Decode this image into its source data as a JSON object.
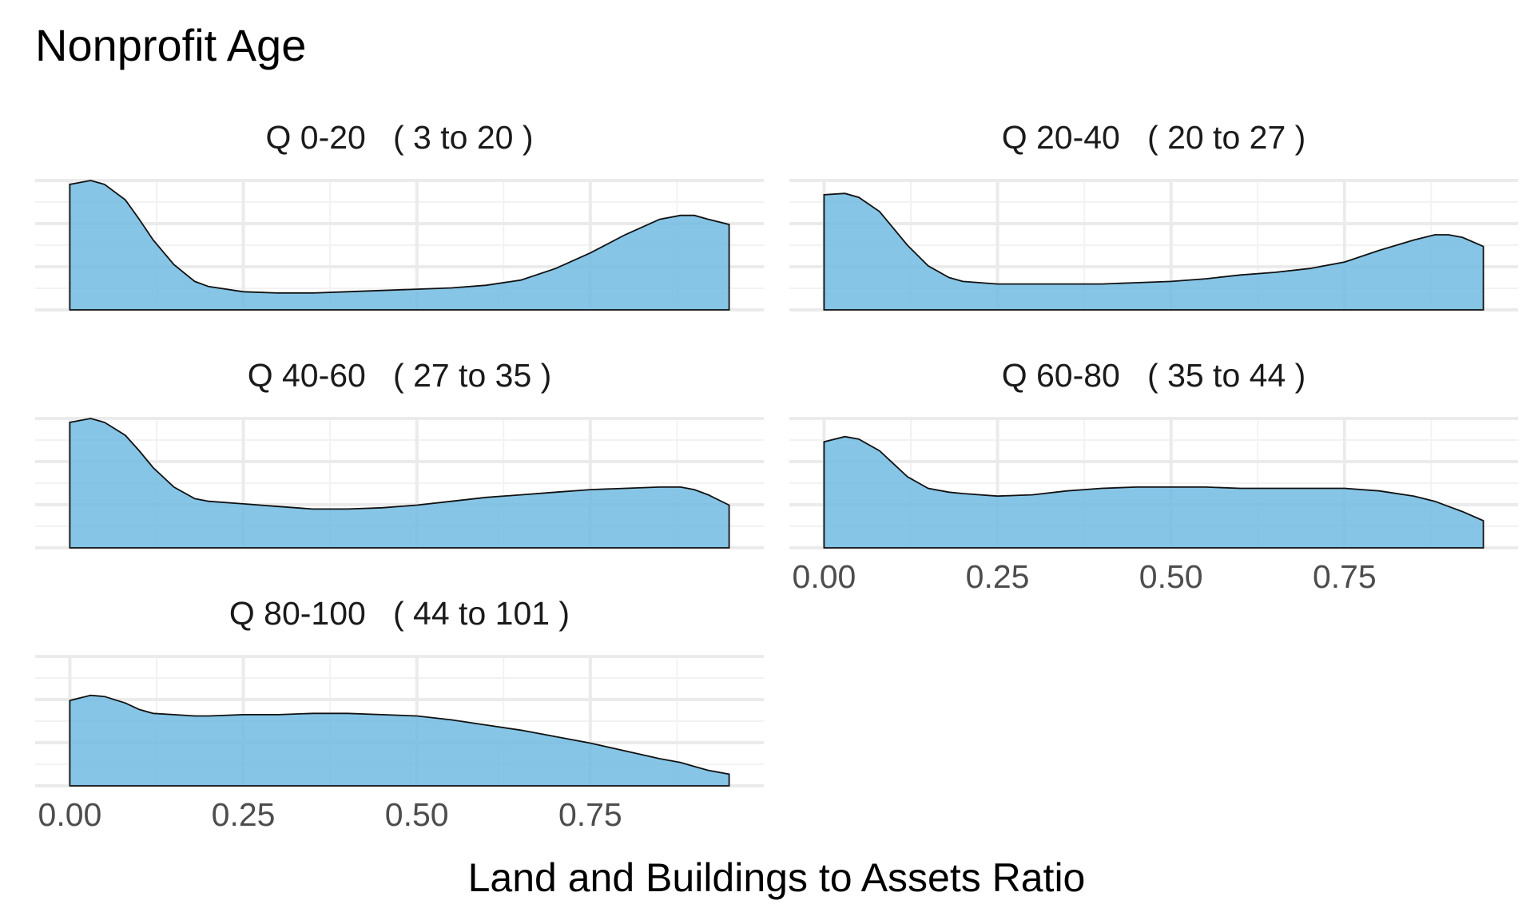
{
  "chart_data": {
    "type": "area",
    "title": "Nonprofit Age",
    "xlabel": "Land and Buildings to Assets Ratio",
    "ylabel": "",
    "xlim": [
      -0.05,
      1.0
    ],
    "ylim": [
      0,
      1
    ],
    "grid": true,
    "x_ticks": [
      {
        "value": 0.0,
        "label": "0.00"
      },
      {
        "value": 0.25,
        "label": "0.25"
      },
      {
        "value": 0.5,
        "label": "0.50"
      },
      {
        "value": 0.75,
        "label": "0.75"
      }
    ],
    "x": [
      0.0,
      0.03,
      0.05,
      0.08,
      0.1,
      0.12,
      0.15,
      0.18,
      0.2,
      0.25,
      0.3,
      0.35,
      0.4,
      0.45,
      0.5,
      0.55,
      0.6,
      0.65,
      0.7,
      0.75,
      0.8,
      0.85,
      0.88,
      0.9,
      0.92,
      0.95
    ],
    "series": [
      {
        "name": "Q 0-20   ( 3 to 20 )",
        "values": [
          0.97,
          1.0,
          0.97,
          0.85,
          0.7,
          0.54,
          0.35,
          0.22,
          0.18,
          0.14,
          0.13,
          0.13,
          0.14,
          0.15,
          0.16,
          0.17,
          0.19,
          0.23,
          0.32,
          0.44,
          0.58,
          0.7,
          0.73,
          0.73,
          0.7,
          0.66
        ]
      },
      {
        "name": "Q 20-40   ( 20 to 27 )",
        "values": [
          0.89,
          0.9,
          0.87,
          0.76,
          0.63,
          0.5,
          0.34,
          0.25,
          0.22,
          0.2,
          0.2,
          0.2,
          0.2,
          0.21,
          0.22,
          0.24,
          0.27,
          0.29,
          0.32,
          0.37,
          0.46,
          0.54,
          0.58,
          0.58,
          0.56,
          0.49
        ]
      },
      {
        "name": "Q 40-60   ( 27 to 35 )",
        "values": [
          0.97,
          1.0,
          0.97,
          0.87,
          0.75,
          0.62,
          0.47,
          0.38,
          0.36,
          0.34,
          0.32,
          0.3,
          0.3,
          0.31,
          0.33,
          0.36,
          0.39,
          0.41,
          0.43,
          0.45,
          0.46,
          0.47,
          0.47,
          0.45,
          0.41,
          0.33
        ]
      },
      {
        "name": "Q 60-80   ( 35 to 44 )",
        "values": [
          0.82,
          0.86,
          0.84,
          0.75,
          0.65,
          0.55,
          0.46,
          0.43,
          0.42,
          0.4,
          0.41,
          0.44,
          0.46,
          0.47,
          0.47,
          0.47,
          0.46,
          0.46,
          0.46,
          0.46,
          0.44,
          0.4,
          0.36,
          0.32,
          0.28,
          0.21
        ]
      },
      {
        "name": "Q 80-100   ( 44 to 101 )",
        "values": [
          0.66,
          0.7,
          0.69,
          0.64,
          0.59,
          0.56,
          0.55,
          0.54,
          0.54,
          0.55,
          0.55,
          0.56,
          0.56,
          0.55,
          0.54,
          0.51,
          0.47,
          0.43,
          0.38,
          0.33,
          0.27,
          0.21,
          0.18,
          0.15,
          0.12,
          0.09
        ]
      }
    ],
    "panels": [
      {
        "series": 0,
        "show_x_ticks": false
      },
      {
        "series": 1,
        "show_x_ticks": false
      },
      {
        "series": 2,
        "show_x_ticks": false
      },
      {
        "series": 3,
        "show_x_ticks": true
      },
      {
        "series": 4,
        "show_x_ticks": true
      }
    ],
    "colors": {
      "fill": "#6bb8e0",
      "outline": "#111111",
      "grid": "#ebebeb"
    }
  }
}
